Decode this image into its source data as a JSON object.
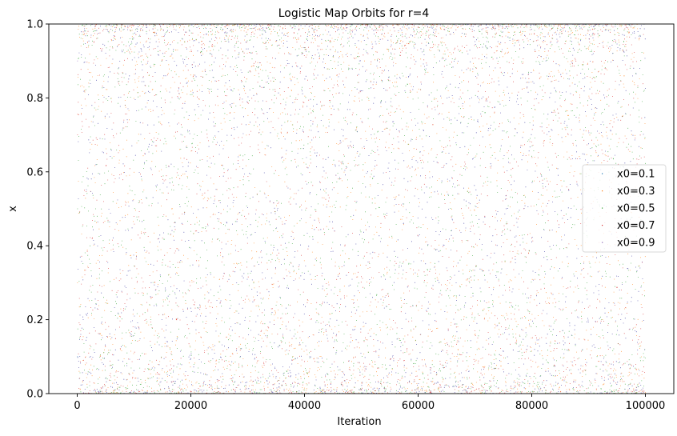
{
  "chart_data": {
    "type": "scatter",
    "title": "Logistic Map Orbits for r=4",
    "xlabel": "Iteration",
    "ylabel": "x",
    "xlim": [
      -5000,
      105000
    ],
    "ylim": [
      0.0,
      1.0
    ],
    "x_ticks": [
      0,
      20000,
      40000,
      60000,
      80000,
      100000
    ],
    "x_tick_labels": [
      "0",
      "20000",
      "40000",
      "60000",
      "80000",
      "100000"
    ],
    "y_ticks": [
      0.0,
      0.2,
      0.4,
      0.6,
      0.8,
      1.0
    ],
    "y_tick_labels": [
      "0.0",
      "0.2",
      "0.4",
      "0.6",
      "0.8",
      "1.0"
    ],
    "grid": false,
    "legend_position": "center-right",
    "r": 4,
    "iterations": 100000,
    "series": [
      {
        "name": "x0=0.1",
        "x0": 0.1,
        "color": "#1f77b4"
      },
      {
        "name": "x0=0.3",
        "x0": 0.3,
        "color": "#ff7f0e"
      },
      {
        "name": "x0=0.5",
        "x0": 0.5,
        "color": "#2ca02c"
      },
      {
        "name": "x0=0.7",
        "x0": 0.7,
        "color": "#d62728"
      },
      {
        "name": "x0=0.9",
        "x0": 0.9,
        "color": "#9467bd"
      }
    ]
  }
}
